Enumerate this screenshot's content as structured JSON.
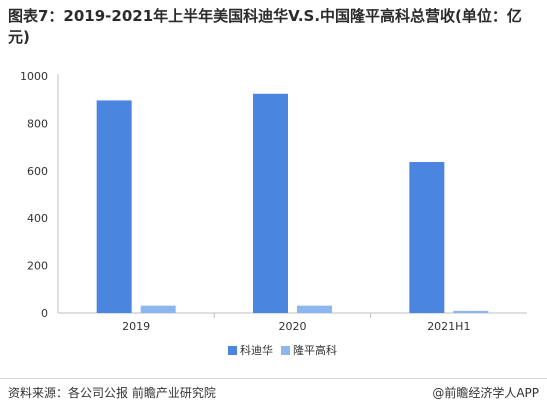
{
  "title": "图表7：2019-2021年上半年美国科迪华V.S.中国隆平高科总营收(单位：亿元)",
  "source": "资料来源：各公司公报 前瞻产业研究院",
  "brand": "@前瞻经济学人APP",
  "chart_data": {
    "type": "bar",
    "categories": [
      "2019",
      "2020",
      "2021H1"
    ],
    "series": [
      {
        "name": "科迪华",
        "color": "#4A86E0",
        "values": [
          897,
          925,
          637
        ]
      },
      {
        "name": "隆平高科",
        "color": "#8DB6EE",
        "values": [
          31,
          31,
          9
        ]
      }
    ],
    "ylim": [
      0,
      1000
    ],
    "yticks": [
      0,
      200,
      400,
      600,
      800,
      1000
    ],
    "grid": false,
    "legend": "bottom-center"
  }
}
